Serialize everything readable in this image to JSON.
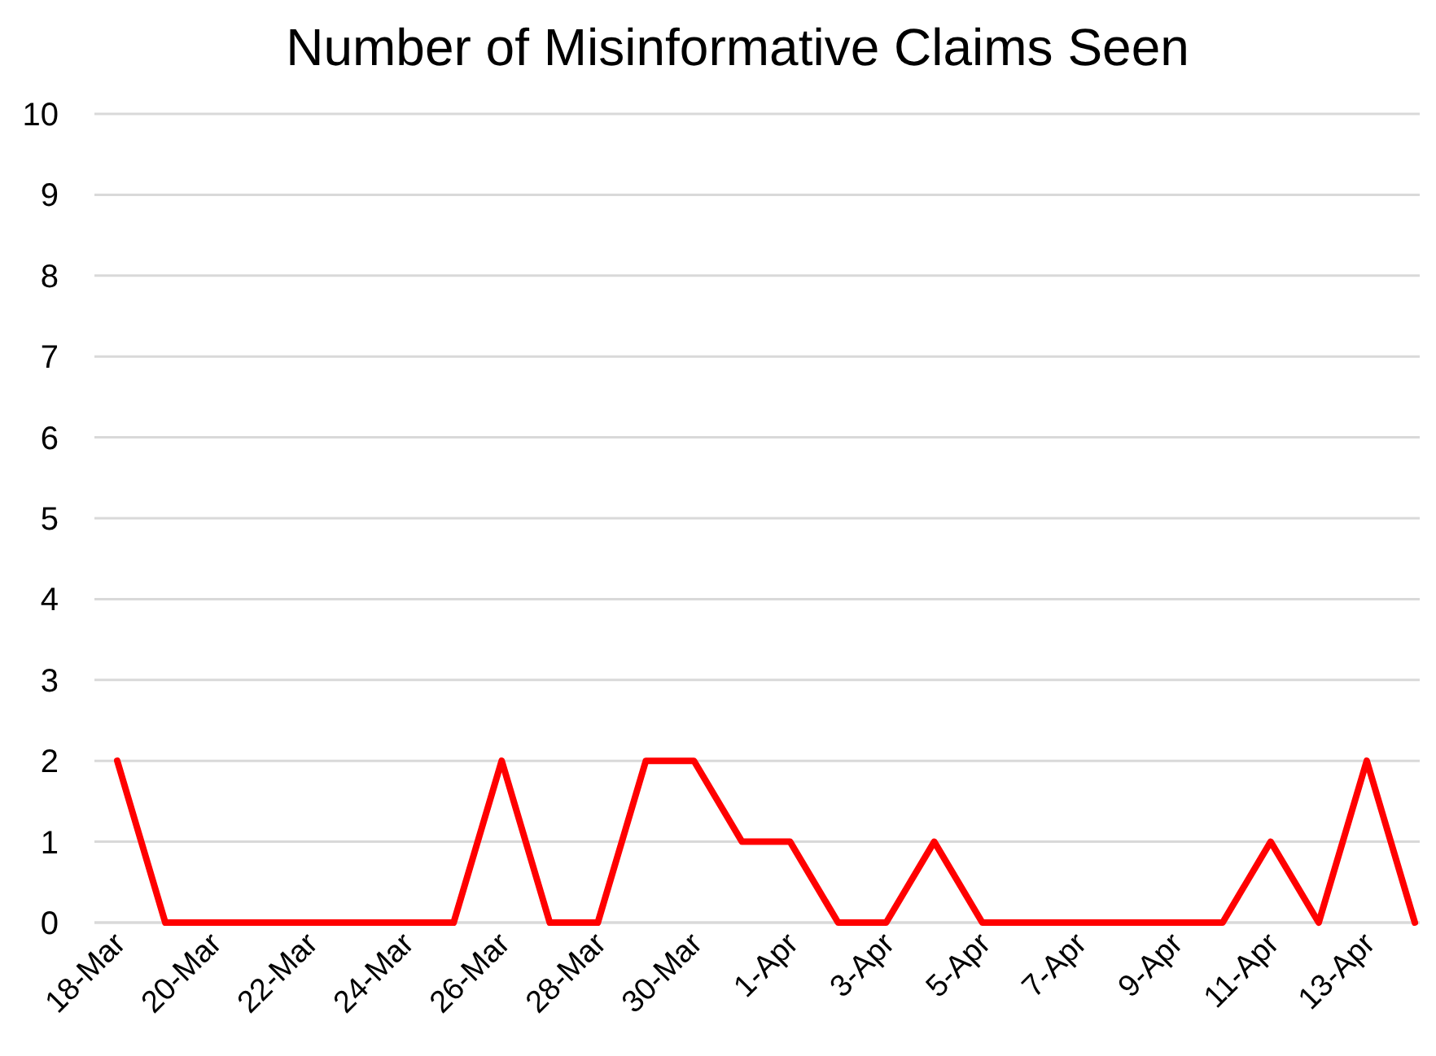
{
  "chart_data": {
    "type": "line",
    "title": "Number of Misinformative Claims Seen",
    "categories": [
      "18-Mar",
      null,
      "20-Mar",
      null,
      "22-Mar",
      null,
      "24-Mar",
      null,
      "26-Mar",
      null,
      "28-Mar",
      null,
      "30-Mar",
      null,
      "1-Apr",
      null,
      "3-Apr",
      null,
      "5-Apr",
      null,
      "7-Apr",
      null,
      "9-Apr",
      null,
      "11-Apr",
      null,
      "13-Apr",
      null
    ],
    "series": [
      {
        "color": "#ff0000",
        "values": [
          2,
          0,
          0,
          0,
          0,
          0,
          0,
          0,
          2,
          0,
          0,
          2,
          2,
          1,
          1,
          0,
          0,
          1,
          0,
          0,
          0,
          0,
          0,
          0,
          1,
          0,
          2,
          0
        ]
      }
    ],
    "ylim": [
      0,
      10
    ],
    "yticks": [
      0,
      1,
      2,
      3,
      4,
      5,
      6,
      7,
      8,
      9,
      10
    ],
    "grid": "y",
    "marker": "none",
    "line_style": "solid"
  }
}
